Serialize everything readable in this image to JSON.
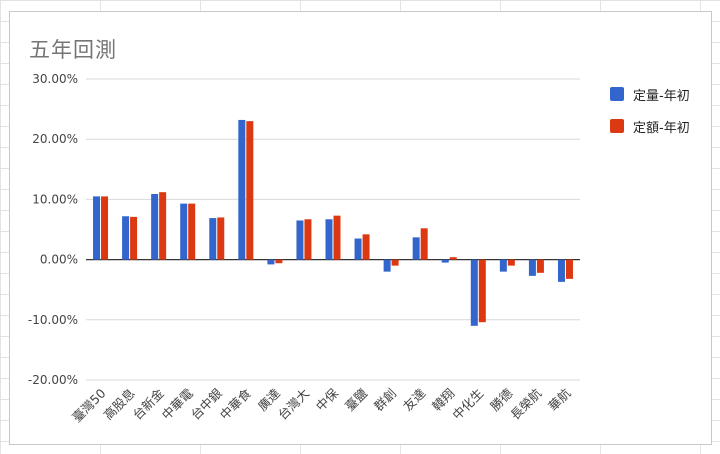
{
  "chart_data": {
    "type": "bar",
    "title": "五年回測",
    "categories": [
      "臺灣50",
      "高股息",
      "台新金",
      "中華電",
      "台中銀",
      "中華食",
      "廣達",
      "台灣大",
      "中保",
      "臺鹽",
      "群創",
      "友達",
      "韓翔",
      "中化生",
      "勝德",
      "長榮航",
      "華航"
    ],
    "series": [
      {
        "name": "定量-年初",
        "color": "#3366cc",
        "values": [
          10.5,
          7.2,
          10.9,
          9.3,
          6.9,
          23.2,
          -0.8,
          6.5,
          6.7,
          3.5,
          -2.0,
          3.7,
          -0.5,
          -11.0,
          -2.0,
          -2.7,
          -3.7
        ]
      },
      {
        "name": "定額-年初",
        "color": "#dc3912",
        "values": [
          10.5,
          7.1,
          11.2,
          9.3,
          7.0,
          23.0,
          -0.6,
          6.7,
          7.3,
          4.2,
          -1.0,
          5.2,
          0.4,
          -10.4,
          -1.0,
          -2.2,
          -3.2
        ]
      }
    ],
    "ylim": [
      -20,
      30
    ],
    "yticks": [
      30,
      20,
      10,
      0,
      -10,
      -20
    ],
    "ytick_labels": [
      "30.00%",
      "20.00%",
      "10.00%",
      "0.00%",
      "-10.00%",
      "-20.00%"
    ],
    "grid": true,
    "legend_position": "right"
  }
}
